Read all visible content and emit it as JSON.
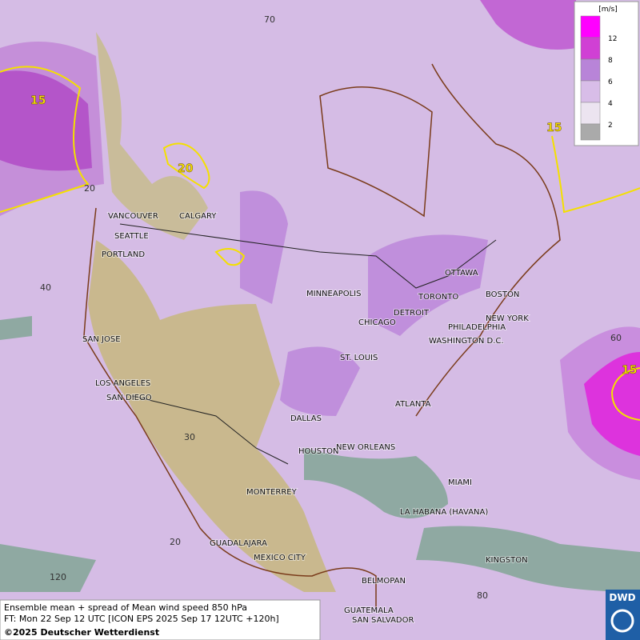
{
  "legend": {
    "unit": "[m/s]",
    "levels": [
      {
        "label": "12",
        "color": "#ff00ff"
      },
      {
        "label": "8",
        "color": "#d040d4"
      },
      {
        "label": "6",
        "color": "#b884d8"
      },
      {
        "label": "4",
        "color": "#d8bde8"
      },
      {
        "label": "2",
        "color": "#ece4f0"
      }
    ]
  },
  "cities": [
    "VANCOUVER",
    "CALGARY",
    "SEATTLE",
    "PORTLAND",
    "MINNEAPOLIS",
    "OTTAWA",
    "TORONTO",
    "BOSTON",
    "DETROIT",
    "NEW YORK",
    "PHILADELPHIA",
    "CHICAGO",
    "WASHINGTON D.C.",
    "SAN JOSE",
    "ST. LOUIS",
    "LOS ANGELES",
    "SAN DIEGO",
    "ATLANTA",
    "DALLAS",
    "HOUSTON",
    "NEW ORLEANS",
    "MIAMI",
    "MONTERREY",
    "LA HABANA (HAVANA)",
    "GUADALAJARA",
    "MEXICO CITY",
    "KINGSTON",
    "BELMOPAN",
    "GUATEMALA",
    "SAN SALVADOR"
  ],
  "grid_labels": [
    "70",
    "20",
    "40",
    "60",
    "30",
    "20",
    "120",
    "80"
  ],
  "contour_labels": [
    "15",
    "20",
    "15",
    "15"
  ],
  "footer": {
    "line1": "Ensemble mean + spread of Mean wind speed 850 hPa",
    "line2": "FT: Mon 22 Sep 12 UTC [ICON EPS 2025 Sep 17 12UTC +120h]",
    "credit": "©2025 Deutscher Wetterdienst"
  },
  "logo": "DWD"
}
